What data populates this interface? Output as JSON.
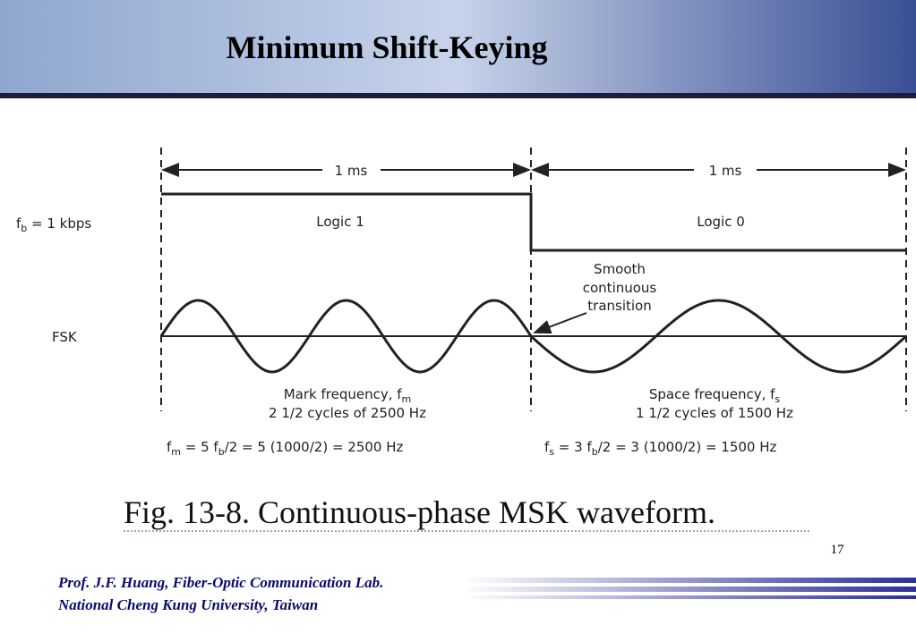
{
  "title": "Minimum Shift-Keying",
  "diagram": {
    "bit_rate": [
      "f",
      "b",
      " = 1 kbps"
    ],
    "duration_left": "1 ms",
    "duration_right": "1 ms",
    "logic_left": "Logic 1",
    "logic_right": "Logic 0",
    "transition_note": [
      "Smooth",
      "continuous",
      "transition"
    ],
    "signal_label": "FSK",
    "mark_note": [
      [
        "Mark frequency, f",
        "m"
      ],
      [
        "2 1/2 cycles of 2500 Hz"
      ]
    ],
    "space_note": [
      [
        "Space frequency, f",
        "s"
      ],
      [
        "1 1/2 cycles of 1500 Hz"
      ]
    ],
    "mark_formula": [
      "f",
      "m",
      " = 5 f",
      "b",
      "/2 = 5 (1000/2) = 2500 Hz"
    ],
    "space_formula": [
      "f",
      "s",
      " = 3 f",
      "b",
      "/2 = 3 (1000/2) = 1500 Hz"
    ]
  },
  "caption": "Fig. 13-8. Continuous-phase MSK waveform.",
  "page_number": "17",
  "footer": [
    "Prof. J.F. Huang, Fiber-Optic Communication Lab.",
    "National Cheng Kung University, Taiwan"
  ]
}
